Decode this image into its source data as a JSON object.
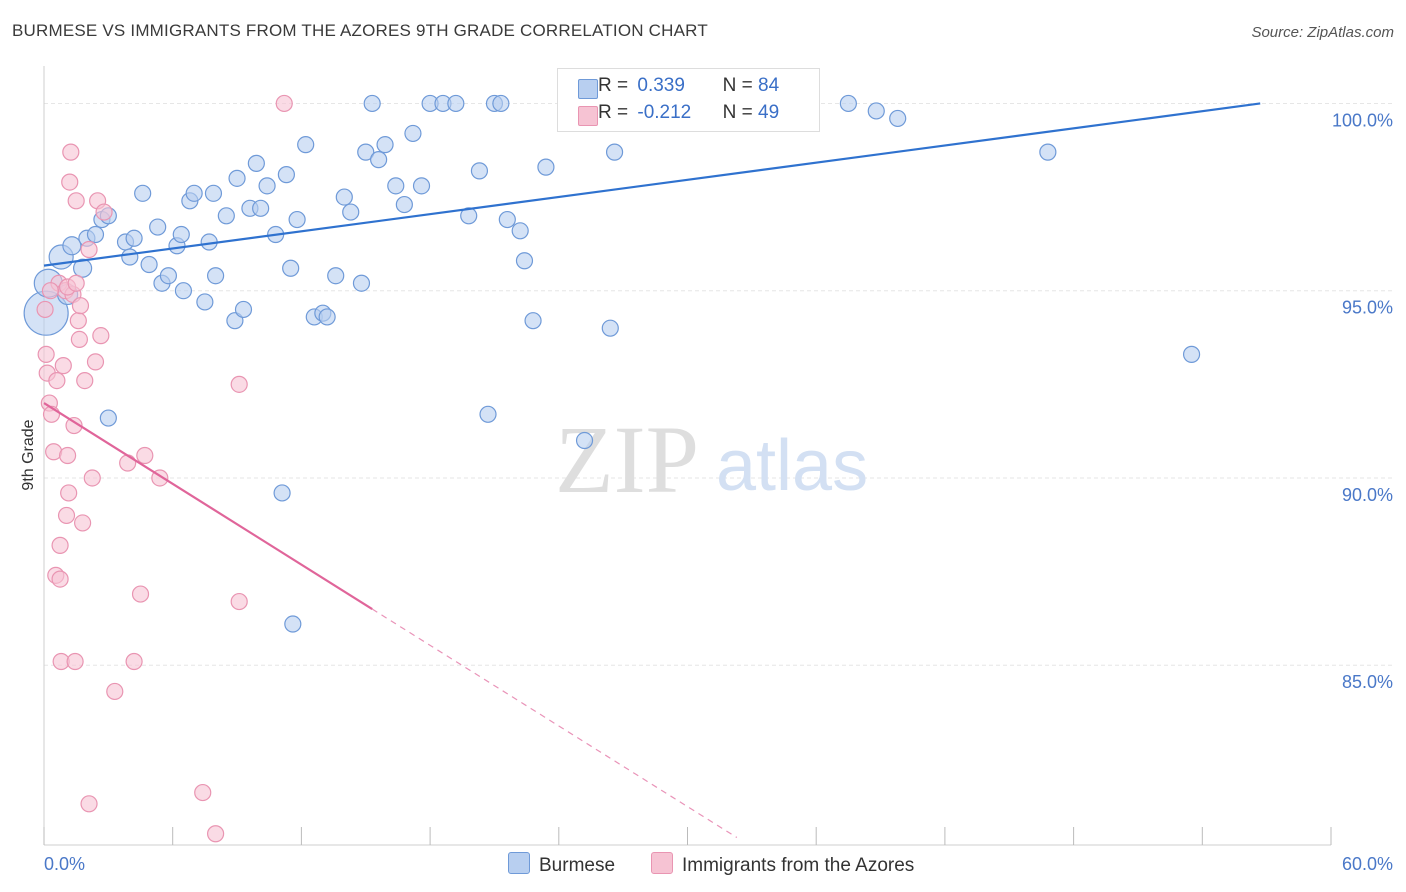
{
  "header": {
    "title": "BURMESE VS IMMIGRANTS FROM THE AZORES 9TH GRADE CORRELATION CHART",
    "source": "Source: ZipAtlas.com"
  },
  "watermark": {
    "zip": "ZIP",
    "atlas": "atlas"
  },
  "colors": {
    "blue_fill": "#b8cff0",
    "blue_stroke": "#6f9ad8",
    "blue_line": "#2f72cf",
    "pink_fill": "#f6c3d3",
    "pink_stroke": "#e995b2",
    "pink_line": "#e0659a",
    "tick_text": "#4a78c8",
    "grid": "#e6e6e6"
  },
  "legend": {
    "rows": [
      {
        "r_label": "R = ",
        "r_value": "0.339",
        "n_label": "N = ",
        "n_value": "84"
      },
      {
        "r_label": "R = ",
        "r_value": "-0.212",
        "n_label": "N = ",
        "n_value": "49"
      }
    ]
  },
  "bottom_legend": {
    "items": [
      {
        "label": "Burmese"
      },
      {
        "label": "Immigrants from the Azores"
      }
    ]
  },
  "chart_data": {
    "type": "scatter",
    "title": "BURMESE VS IMMIGRANTS FROM THE AZORES 9TH GRADE CORRELATION CHART",
    "xlabel": "",
    "ylabel": "9th Grade",
    "xlim": [
      0,
      60
    ],
    "ylim": [
      80.2,
      101.0
    ],
    "x_tick_labels": [
      "0.0%",
      "60.0%"
    ],
    "y_ticks": [
      85,
      90,
      95,
      100
    ],
    "y_tick_labels": [
      "85.0%",
      "90.0%",
      "95.0%",
      "100.0%"
    ],
    "grid": true,
    "legend_placement": "top-center",
    "series": [
      {
        "name": "Burmese",
        "color": "#6f9ad8",
        "r": 0.339,
        "n": 84,
        "trend": {
          "x": [
            0,
            56.7
          ],
          "y": [
            95.67,
            100.0
          ]
        },
        "points": [
          [
            0.1,
            94.4,
            22
          ],
          [
            0.2,
            95.2,
            14
          ],
          [
            0.8,
            95.9,
            12
          ],
          [
            1.1,
            94.9,
            10
          ],
          [
            1.3,
            96.2,
            9
          ],
          [
            1.8,
            95.6,
            9
          ],
          [
            2.0,
            96.4,
            8
          ],
          [
            2.4,
            96.5,
            8
          ],
          [
            2.7,
            96.9,
            8
          ],
          [
            3.0,
            97.0,
            8
          ],
          [
            3.8,
            96.3,
            8
          ],
          [
            4.0,
            95.9,
            8
          ],
          [
            4.2,
            96.4,
            8
          ],
          [
            4.6,
            97.6,
            8
          ],
          [
            4.9,
            95.7,
            8
          ],
          [
            5.3,
            96.7,
            8
          ],
          [
            5.5,
            95.2,
            8
          ],
          [
            5.8,
            95.4,
            8
          ],
          [
            6.2,
            96.2,
            8
          ],
          [
            6.4,
            96.5,
            8
          ],
          [
            6.8,
            97.4,
            8
          ],
          [
            7.0,
            97.6,
            8
          ],
          [
            7.5,
            94.7,
            8
          ],
          [
            7.7,
            96.3,
            8
          ],
          [
            7.9,
            97.6,
            8
          ],
          [
            8.5,
            97.0,
            8
          ],
          [
            8.9,
            94.2,
            8
          ],
          [
            9.0,
            98.0,
            8
          ],
          [
            9.3,
            94.5,
            8
          ],
          [
            9.6,
            97.2,
            8
          ],
          [
            9.9,
            98.4,
            8
          ],
          [
            10.1,
            97.2,
            8
          ],
          [
            10.4,
            97.8,
            8
          ],
          [
            10.8,
            96.5,
            8
          ],
          [
            11.3,
            98.1,
            8
          ],
          [
            11.5,
            95.6,
            8
          ],
          [
            11.8,
            96.9,
            8
          ],
          [
            12.2,
            98.9,
            8
          ],
          [
            12.6,
            94.3,
            8
          ],
          [
            13.0,
            94.4,
            8
          ],
          [
            13.2,
            94.3,
            8
          ],
          [
            13.6,
            95.4,
            8
          ],
          [
            14.0,
            97.5,
            8
          ],
          [
            14.3,
            97.1,
            8
          ],
          [
            14.8,
            95.2,
            8
          ],
          [
            15.0,
            98.7,
            8
          ],
          [
            15.3,
            100.0,
            8
          ],
          [
            15.6,
            98.5,
            8
          ],
          [
            15.9,
            98.9,
            8
          ],
          [
            16.4,
            97.8,
            8
          ],
          [
            16.8,
            97.3,
            8
          ],
          [
            17.2,
            99.2,
            8
          ],
          [
            17.6,
            97.8,
            8
          ],
          [
            18.0,
            100.0,
            8
          ],
          [
            18.6,
            100.0,
            8
          ],
          [
            19.2,
            100.0,
            8
          ],
          [
            19.8,
            97.0,
            8
          ],
          [
            20.3,
            98.2,
            8
          ],
          [
            21.0,
            100.0,
            8
          ],
          [
            21.3,
            100.0,
            8
          ],
          [
            21.6,
            96.9,
            8
          ],
          [
            22.2,
            96.6,
            8
          ],
          [
            22.4,
            95.8,
            8
          ],
          [
            22.8,
            94.2,
            8
          ],
          [
            23.4,
            98.3,
            8
          ],
          [
            24.5,
            100.0,
            8
          ],
          [
            25.5,
            100.0,
            8
          ],
          [
            26.4,
            94.0,
            8
          ],
          [
            26.6,
            98.7,
            8
          ],
          [
            28.8,
            100.0,
            8
          ],
          [
            30.2,
            100.0,
            8
          ],
          [
            31.7,
            100.0,
            8
          ],
          [
            37.5,
            100.0,
            8
          ],
          [
            38.8,
            99.8,
            8
          ],
          [
            39.8,
            99.6,
            8
          ],
          [
            46.8,
            98.7,
            8
          ],
          [
            53.5,
            93.3,
            8
          ],
          [
            20.7,
            91.7,
            8
          ],
          [
            25.2,
            91.0,
            8
          ],
          [
            3.0,
            91.6,
            8
          ],
          [
            11.1,
            89.6,
            8
          ],
          [
            11.6,
            86.1,
            8
          ],
          [
            6.5,
            95.0,
            8
          ],
          [
            8.0,
            95.4,
            8
          ]
        ]
      },
      {
        "name": "Immigrants from the Azores",
        "color": "#e995b2",
        "r": -0.212,
        "n": 49,
        "trend": {
          "x": [
            0,
            15.3
          ],
          "y": [
            92.0,
            86.5
          ]
        },
        "trend_dashed": {
          "x": [
            15.3,
            32.3
          ],
          "y": [
            86.5,
            80.4
          ]
        },
        "points": [
          [
            0.05,
            94.5,
            8
          ],
          [
            0.1,
            93.3,
            8
          ],
          [
            0.15,
            92.8,
            8
          ],
          [
            0.25,
            92.0,
            8
          ],
          [
            0.35,
            91.7,
            8
          ],
          [
            0.45,
            90.7,
            8
          ],
          [
            0.55,
            87.4,
            8
          ],
          [
            0.6,
            92.6,
            8
          ],
          [
            0.7,
            95.2,
            8
          ],
          [
            0.75,
            88.2,
            8
          ],
          [
            0.75,
            87.3,
            8
          ],
          [
            0.8,
            85.1,
            8
          ],
          [
            0.9,
            93.0,
            8
          ],
          [
            1.0,
            95.0,
            8
          ],
          [
            1.05,
            89.0,
            8
          ],
          [
            1.1,
            90.6,
            8
          ],
          [
            1.15,
            89.6,
            8
          ],
          [
            1.2,
            97.9,
            8
          ],
          [
            1.25,
            98.7,
            8
          ],
          [
            1.35,
            94.9,
            8
          ],
          [
            1.4,
            91.4,
            8
          ],
          [
            1.45,
            85.1,
            8
          ],
          [
            1.5,
            97.4,
            8
          ],
          [
            1.6,
            94.2,
            8
          ],
          [
            1.65,
            93.7,
            8
          ],
          [
            1.7,
            94.6,
            8
          ],
          [
            1.8,
            88.8,
            8
          ],
          [
            1.9,
            92.6,
            8
          ],
          [
            2.1,
            96.1,
            8
          ],
          [
            2.25,
            90.0,
            8
          ],
          [
            2.4,
            93.1,
            8
          ],
          [
            2.5,
            97.4,
            8
          ],
          [
            2.65,
            93.8,
            8
          ],
          [
            2.8,
            97.1,
            8
          ],
          [
            3.3,
            84.3,
            8
          ],
          [
            3.9,
            90.4,
            8
          ],
          [
            4.2,
            85.1,
            8
          ],
          [
            4.5,
            86.9,
            8
          ],
          [
            4.7,
            90.6,
            8
          ],
          [
            5.4,
            90.0,
            8
          ],
          [
            7.4,
            81.6,
            8
          ],
          [
            8.0,
            80.5,
            8
          ],
          [
            9.1,
            86.7,
            8
          ],
          [
            9.1,
            92.5,
            8
          ],
          [
            11.2,
            100.0,
            8
          ],
          [
            2.1,
            81.3,
            8
          ],
          [
            1.1,
            95.1,
            8
          ],
          [
            0.3,
            95.0,
            8
          ],
          [
            1.5,
            95.2,
            8
          ]
        ]
      }
    ]
  }
}
